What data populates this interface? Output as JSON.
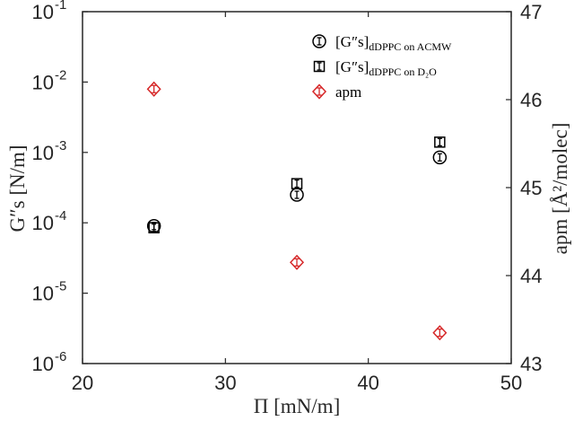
{
  "chart_data": {
    "type": "scatter",
    "xlabel": "Π [mN/m]",
    "ylabel_left": "G″s [N/m]",
    "ylabel_right": "apm [Å²/molec]",
    "xlim": [
      20,
      50
    ],
    "ylim_left": [
      1e-06,
      0.1
    ],
    "ylim_right": [
      43,
      47
    ],
    "yscale_left": "log",
    "yscale_right": "linear",
    "x_ticks": [
      "20",
      "30",
      "40",
      "50"
    ],
    "y_left_ticks": [
      {
        "base": "10",
        "exp": "-6"
      },
      {
        "base": "10",
        "exp": "-5"
      },
      {
        "base": "10",
        "exp": "-4"
      },
      {
        "base": "10",
        "exp": "-3"
      },
      {
        "base": "10",
        "exp": "-2"
      },
      {
        "base": "10",
        "exp": "-1"
      }
    ],
    "y_right_ticks": [
      "43",
      "44",
      "45",
      "46",
      "47"
    ],
    "grid": false,
    "legend_position": "top-right",
    "legend": [
      {
        "main": "[G″s]",
        "sub": "dDPPC on ACMW",
        "marker": "circle",
        "color": "#000000"
      },
      {
        "main": "[G″s]",
        "sub": "dDPPC on D₂O",
        "marker": "square",
        "color": "#000000"
      },
      {
        "main": "apm",
        "sub": "",
        "marker": "diamond",
        "color": "#d62728"
      }
    ],
    "series": [
      {
        "axis": "left",
        "marker": "circle",
        "color": "#000000",
        "x": [
          25,
          35,
          45
        ],
        "y": [
          9e-05,
          0.00025,
          0.00085
        ]
      },
      {
        "axis": "left",
        "marker": "square",
        "color": "#000000",
        "x": [
          25,
          35,
          45
        ],
        "y": [
          8.5e-05,
          0.00036,
          0.0014
        ]
      },
      {
        "axis": "right",
        "marker": "diamond",
        "color": "#d62728",
        "x": [
          25,
          35,
          45
        ],
        "y": [
          46.12,
          44.15,
          43.35
        ]
      }
    ]
  }
}
